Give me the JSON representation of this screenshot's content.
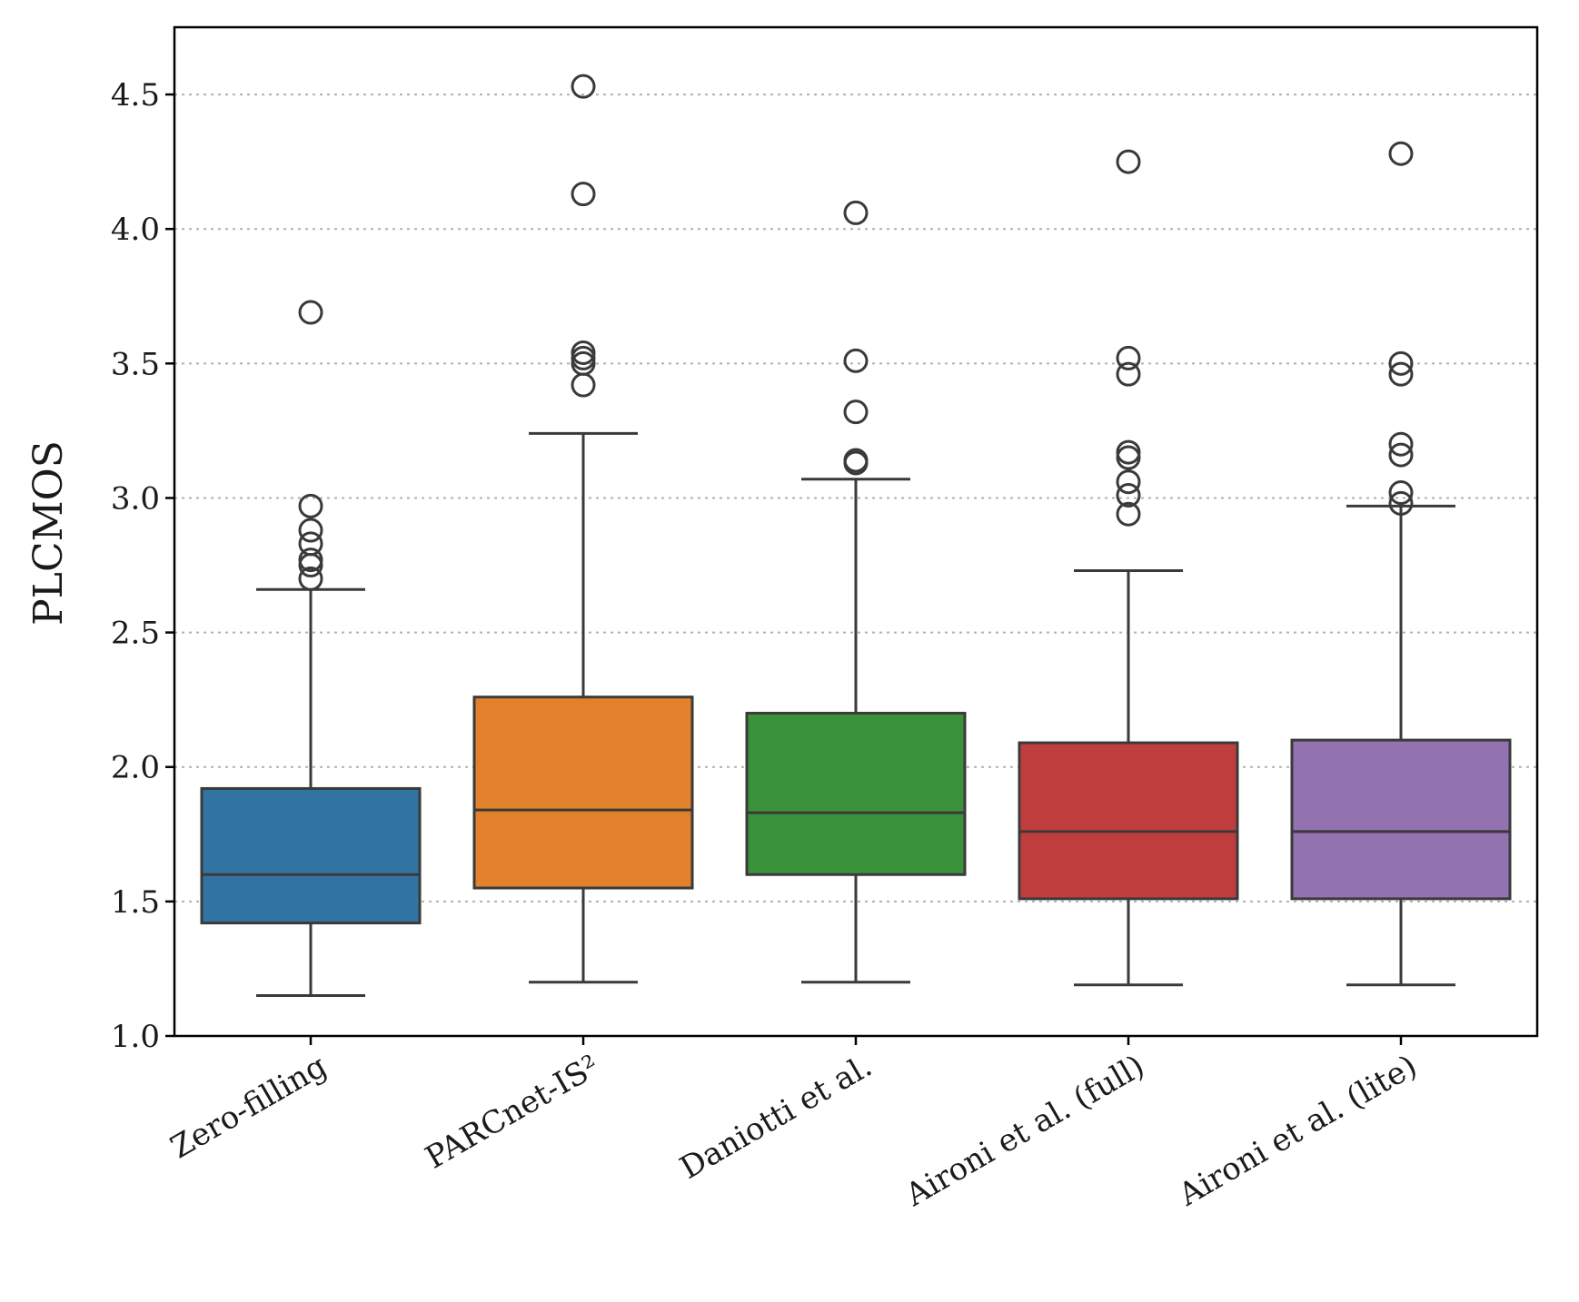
{
  "chart_data": {
    "type": "box",
    "title": "",
    "xlabel": "",
    "ylabel": "PLCMOS",
    "ylim": [
      1.0,
      4.75
    ],
    "yticks": [
      "1.0",
      "1.5",
      "2.0",
      "2.5",
      "3.0",
      "3.5",
      "4.0",
      "4.5"
    ],
    "grid": "horizontal-dotted",
    "categories": [
      "Zero-filling",
      "PARCnet-IS²",
      "Daniotti et al.",
      "Aironi et al. (full)",
      "Aironi et al. (lite)"
    ],
    "colors": [
      "#3274a1",
      "#e1812c",
      "#3a923a",
      "#c03d3e",
      "#9372b2"
    ],
    "boxes": [
      {
        "whislo": 1.15,
        "q1": 1.42,
        "median": 1.6,
        "q3": 1.92,
        "whishi": 2.66,
        "fliers": [
          2.7,
          2.75,
          2.77,
          2.83,
          2.88,
          2.97,
          3.69
        ]
      },
      {
        "whislo": 1.2,
        "q1": 1.55,
        "median": 1.84,
        "q3": 2.26,
        "whishi": 3.24,
        "fliers": [
          3.42,
          3.5,
          3.52,
          3.54,
          4.13,
          4.53
        ]
      },
      {
        "whislo": 1.2,
        "q1": 1.6,
        "median": 1.83,
        "q3": 2.2,
        "whishi": 3.07,
        "fliers": [
          3.13,
          3.14,
          3.32,
          3.51,
          4.06
        ]
      },
      {
        "whislo": 1.19,
        "q1": 1.51,
        "median": 1.76,
        "q3": 2.09,
        "whishi": 2.73,
        "fliers": [
          2.94,
          3.01,
          3.06,
          3.15,
          3.17,
          3.46,
          3.52,
          4.25
        ]
      },
      {
        "whislo": 1.19,
        "q1": 1.51,
        "median": 1.76,
        "q3": 2.1,
        "whishi": 2.97,
        "fliers": [
          2.98,
          3.02,
          3.16,
          3.2,
          3.46,
          3.5,
          4.28
        ]
      }
    ]
  }
}
